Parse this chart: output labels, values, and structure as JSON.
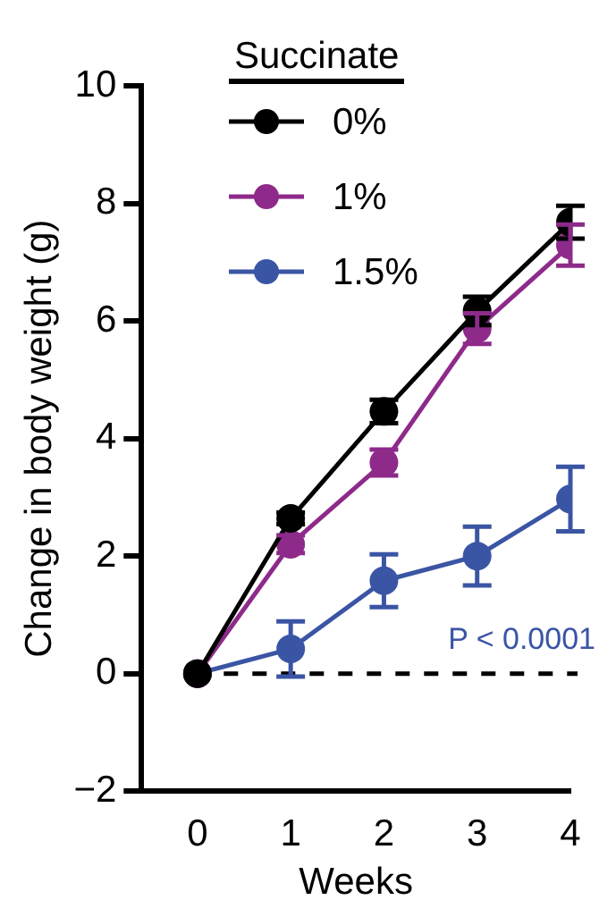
{
  "chart_data": {
    "type": "line",
    "xlabel": "Weeks",
    "ylabel": "Change in body weight (g)",
    "legend_title": "Succinate",
    "legend": "top left",
    "marker": "circle",
    "line_style": "solid",
    "grid": false,
    "x": [
      0,
      1,
      2,
      3,
      4
    ],
    "xlim": [
      -0.6,
      4
    ],
    "xticks": [
      0,
      1,
      2,
      3,
      4
    ],
    "ylim": [
      -2,
      10
    ],
    "yticks": [
      -2,
      0,
      2,
      4,
      6,
      8,
      10
    ],
    "series": [
      {
        "name": "0%",
        "color": "#000000",
        "values": [
          0,
          2.64,
          4.46,
          6.17,
          7.68
        ],
        "errors": [
          null,
          0.1,
          0.2,
          0.24,
          0.28
        ]
      },
      {
        "name": "1%",
        "color": "#8e2a8a",
        "values": [
          0,
          2.2,
          3.59,
          5.87,
          7.29
        ],
        "errors": [
          null,
          0.15,
          0.22,
          0.26,
          0.35
        ]
      },
      {
        "name": "1.5%",
        "color": "#3a55a4",
        "values": [
          0,
          0.42,
          1.58,
          2.0,
          2.97
        ],
        "errors": [
          null,
          0.47,
          0.45,
          0.5,
          0.55
        ]
      }
    ],
    "ref_lines": [
      {
        "axis": "y",
        "value": 0,
        "color": "#000000",
        "line_style": "dashed"
      }
    ],
    "annotations": [
      "P < 0.0001"
    ]
  }
}
